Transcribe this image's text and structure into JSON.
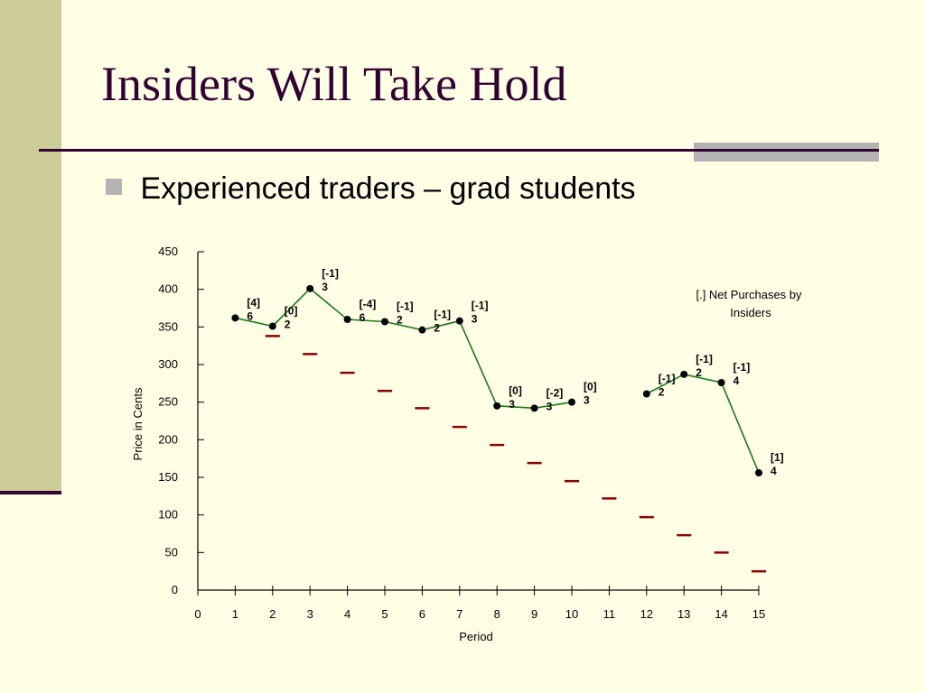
{
  "slide": {
    "title": "Insiders Will Take Hold",
    "bullet": "Experienced traders – grad students"
  },
  "colors": {
    "background": "#FFFFE6",
    "sidebar": "#CCCC99",
    "title": "#330033",
    "accent_gray": "#B3B3B3",
    "line": "#1A7A1A",
    "dash": "#8B0000"
  },
  "chart_data": {
    "type": "line",
    "xlabel": "Period",
    "ylabel": "Price in Cents",
    "xlim": [
      0,
      15
    ],
    "ylim": [
      0,
      450
    ],
    "x_ticks": [
      0,
      1,
      2,
      3,
      4,
      5,
      6,
      7,
      8,
      9,
      10,
      11,
      12,
      13,
      14,
      15
    ],
    "y_ticks": [
      0,
      50,
      100,
      150,
      200,
      250,
      300,
      350,
      400,
      450
    ],
    "legend_note": {
      "line1": "[.] Net Purchases by",
      "line2": "Insiders"
    },
    "series": [
      {
        "style": "line-with-dots",
        "segments": [
          [
            {
              "x": 1,
              "y": 362,
              "label1": "[4]",
              "label2": "6"
            },
            {
              "x": 2,
              "y": 351,
              "label1": "[0]",
              "label2": "2"
            },
            {
              "x": 3,
              "y": 401,
              "label1": "[-1]",
              "label2": "3"
            },
            {
              "x": 4,
              "y": 360,
              "label1": "[-4]",
              "label2": "6"
            },
            {
              "x": 5,
              "y": 357,
              "label1": "[-1]",
              "label2": "2"
            },
            {
              "x": 6,
              "y": 346,
              "label1": "[-1]",
              "label2": "2"
            },
            {
              "x": 7,
              "y": 358,
              "label1": "[-1]",
              "label2": "3"
            },
            {
              "x": 8,
              "y": 245,
              "label1": "[0]",
              "label2": "3"
            },
            {
              "x": 9,
              "y": 242,
              "label1": "[-2]",
              "label2": "3"
            },
            {
              "x": 10,
              "y": 250,
              "label1": "[0]",
              "label2": "3"
            }
          ],
          [
            {
              "x": 12,
              "y": 261,
              "label1": "[-1]",
              "label2": "2"
            },
            {
              "x": 13,
              "y": 287,
              "label1": "[-1]",
              "label2": "2"
            },
            {
              "x": 14,
              "y": 276,
              "label1": "[-1]",
              "label2": "4"
            },
            {
              "x": 15,
              "y": 156,
              "label1": "[1]",
              "label2": "4"
            }
          ]
        ]
      },
      {
        "style": "dash-markers",
        "x": [
          2,
          3,
          4,
          5,
          6,
          7,
          8,
          9,
          10,
          11,
          12,
          13,
          14,
          15
        ],
        "values": [
          338,
          314,
          289,
          265,
          242,
          217,
          193,
          169,
          145,
          122,
          97,
          73,
          50,
          25
        ]
      }
    ]
  }
}
